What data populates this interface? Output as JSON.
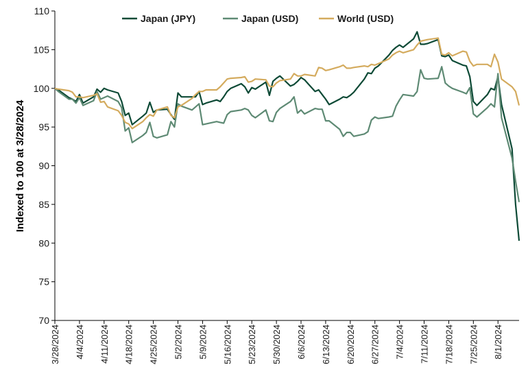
{
  "chart_data": {
    "type": "line",
    "title": "",
    "xlabel": "",
    "ylabel": "Indexed to 100 at 3/28/2024",
    "ylim": [
      70,
      110
    ],
    "yticks": [
      70,
      75,
      80,
      85,
      90,
      95,
      100,
      105,
      110
    ],
    "xlim": [
      "2024-03-28",
      "2024-08-07"
    ],
    "xticks": [
      "3/28/2024",
      "4/4/2024",
      "4/11/2024",
      "4/18/2024",
      "4/25/2024",
      "5/2/2024",
      "5/9/2024",
      "5/16/2024",
      "5/23/2024",
      "5/30/2024",
      "6/6/2024",
      "6/13/2024",
      "6/20/2024",
      "6/27/2024",
      "7/4/2024",
      "7/11/2024",
      "7/18/2024",
      "7/25/2024",
      "8/1/2024"
    ],
    "grid": false,
    "legend": "top",
    "x": [
      "2024-03-28",
      "2024-03-29",
      "2024-04-01",
      "2024-04-02",
      "2024-04-03",
      "2024-04-04",
      "2024-04-05",
      "2024-04-08",
      "2024-04-09",
      "2024-04-10",
      "2024-04-11",
      "2024-04-12",
      "2024-04-15",
      "2024-04-16",
      "2024-04-17",
      "2024-04-18",
      "2024-04-19",
      "2024-04-22",
      "2024-04-23",
      "2024-04-24",
      "2024-04-25",
      "2024-04-26",
      "2024-04-29",
      "2024-04-30",
      "2024-05-01",
      "2024-05-02",
      "2024-05-03",
      "2024-05-06",
      "2024-05-07",
      "2024-05-08",
      "2024-05-09",
      "2024-05-10",
      "2024-05-13",
      "2024-05-14",
      "2024-05-15",
      "2024-05-16",
      "2024-05-17",
      "2024-05-20",
      "2024-05-21",
      "2024-05-22",
      "2024-05-23",
      "2024-05-24",
      "2024-05-27",
      "2024-05-28",
      "2024-05-29",
      "2024-05-30",
      "2024-05-31",
      "2024-06-03",
      "2024-06-04",
      "2024-06-05",
      "2024-06-06",
      "2024-06-07",
      "2024-06-10",
      "2024-06-11",
      "2024-06-12",
      "2024-06-13",
      "2024-06-14",
      "2024-06-17",
      "2024-06-18",
      "2024-06-19",
      "2024-06-20",
      "2024-06-21",
      "2024-06-24",
      "2024-06-25",
      "2024-06-26",
      "2024-06-27",
      "2024-06-28",
      "2024-07-01",
      "2024-07-02",
      "2024-07-03",
      "2024-07-04",
      "2024-07-05",
      "2024-07-08",
      "2024-07-09",
      "2024-07-10",
      "2024-07-11",
      "2024-07-12",
      "2024-07-15",
      "2024-07-16",
      "2024-07-17",
      "2024-07-18",
      "2024-07-19",
      "2024-07-22",
      "2024-07-23",
      "2024-07-24",
      "2024-07-25",
      "2024-07-26",
      "2024-07-29",
      "2024-07-30",
      "2024-07-31",
      "2024-08-01",
      "2024-08-02",
      "2024-08-05",
      "2024-08-06",
      "2024-08-07"
    ],
    "series": [
      {
        "name": "Japan (JPY)",
        "color": "#0d4a36",
        "values": [
          100.0,
          99.8,
          98.8,
          98.6,
          98.3,
          99.2,
          98.1,
          98.9,
          99.9,
          99.5,
          100.0,
          99.8,
          99.4,
          98.3,
          96.5,
          96.8,
          95.3,
          96.4,
          96.8,
          98.2,
          96.9,
          97.2,
          97.3,
          96.6,
          96.0,
          99.4,
          98.9,
          98.9,
          98.9,
          99.6,
          97.9,
          98.1,
          98.5,
          98.3,
          98.9,
          99.6,
          100.0,
          100.6,
          100.2,
          99.4,
          100.1,
          99.9,
          100.8,
          99.1,
          100.9,
          101.3,
          101.6,
          100.3,
          100.5,
          100.9,
          101.4,
          101.1,
          99.6,
          99.8,
          99.2,
          98.6,
          97.9,
          98.6,
          98.9,
          98.8,
          99.1,
          99.5,
          101.2,
          102.0,
          101.9,
          102.6,
          102.9,
          104.3,
          104.9,
          105.3,
          105.6,
          105.3,
          106.4,
          107.3,
          105.7,
          105.7,
          105.8,
          106.3,
          104.2,
          104.1,
          104.3,
          103.6,
          103.0,
          102.9,
          101.5,
          98.3,
          97.8,
          99.2,
          100.0,
          99.8,
          101.5,
          97.9,
          92.2,
          85.0,
          80.3
        ]
      },
      {
        "name": "Japan (USD)",
        "color": "#5e8a74",
        "values": [
          100.0,
          99.6,
          98.6,
          98.6,
          98.1,
          98.8,
          97.8,
          98.4,
          99.6,
          98.6,
          98.8,
          99.0,
          98.3,
          97.5,
          94.5,
          94.9,
          93.0,
          93.9,
          94.3,
          95.6,
          93.8,
          93.6,
          94.0,
          95.7,
          95.0,
          98.0,
          97.7,
          97.2,
          97.6,
          98.0,
          95.3,
          95.4,
          95.7,
          95.6,
          95.5,
          96.6,
          97.0,
          97.2,
          97.4,
          97.2,
          96.5,
          96.2,
          97.2,
          95.8,
          95.7,
          96.9,
          97.4,
          98.3,
          98.9,
          96.8,
          97.2,
          96.7,
          97.4,
          97.3,
          97.3,
          95.8,
          95.8,
          94.7,
          93.8,
          94.3,
          94.3,
          93.8,
          94.1,
          94.4,
          95.9,
          96.3,
          96.1,
          96.3,
          96.4,
          97.7,
          98.5,
          99.2,
          99.0,
          99.6,
          102.4,
          101.3,
          101.2,
          101.3,
          102.8,
          100.7,
          100.3,
          100.0,
          99.5,
          99.3,
          100.1,
          96.7,
          96.3,
          97.5,
          98.0,
          97.6,
          101.9,
          96.2,
          91.0,
          88.0,
          85.3
        ]
      },
      {
        "name": "World (USD)",
        "color": "#d4ab5e",
        "values": [
          100.0,
          99.9,
          99.7,
          99.5,
          98.9,
          98.9,
          98.8,
          99.1,
          99.3,
          98.2,
          98.3,
          97.6,
          97.1,
          96.5,
          95.6,
          95.4,
          94.8,
          95.7,
          96.2,
          96.6,
          96.4,
          97.2,
          97.6,
          96.5,
          96.2,
          97.6,
          97.8,
          98.7,
          99.2,
          99.6,
          99.6,
          99.8,
          99.8,
          100.2,
          100.7,
          101.2,
          101.3,
          101.4,
          101.5,
          100.8,
          100.9,
          101.2,
          101.1,
          100.3,
          100.2,
          100.7,
          101.0,
          101.2,
          101.9,
          101.6,
          101.6,
          101.8,
          101.6,
          102.7,
          102.6,
          102.3,
          102.4,
          102.8,
          103.0,
          102.6,
          102.6,
          102.7,
          102.9,
          102.8,
          103.1,
          103.0,
          103.2,
          103.8,
          104.3,
          104.6,
          104.8,
          104.6,
          105.0,
          105.6,
          106.1,
          106.2,
          106.3,
          106.5,
          104.4,
          104.3,
          104.6,
          104.2,
          104.8,
          104.7,
          103.5,
          102.9,
          103.1,
          103.1,
          102.8,
          104.4,
          103.4,
          101.2,
          100.2,
          99.6,
          97.8
        ]
      }
    ]
  }
}
